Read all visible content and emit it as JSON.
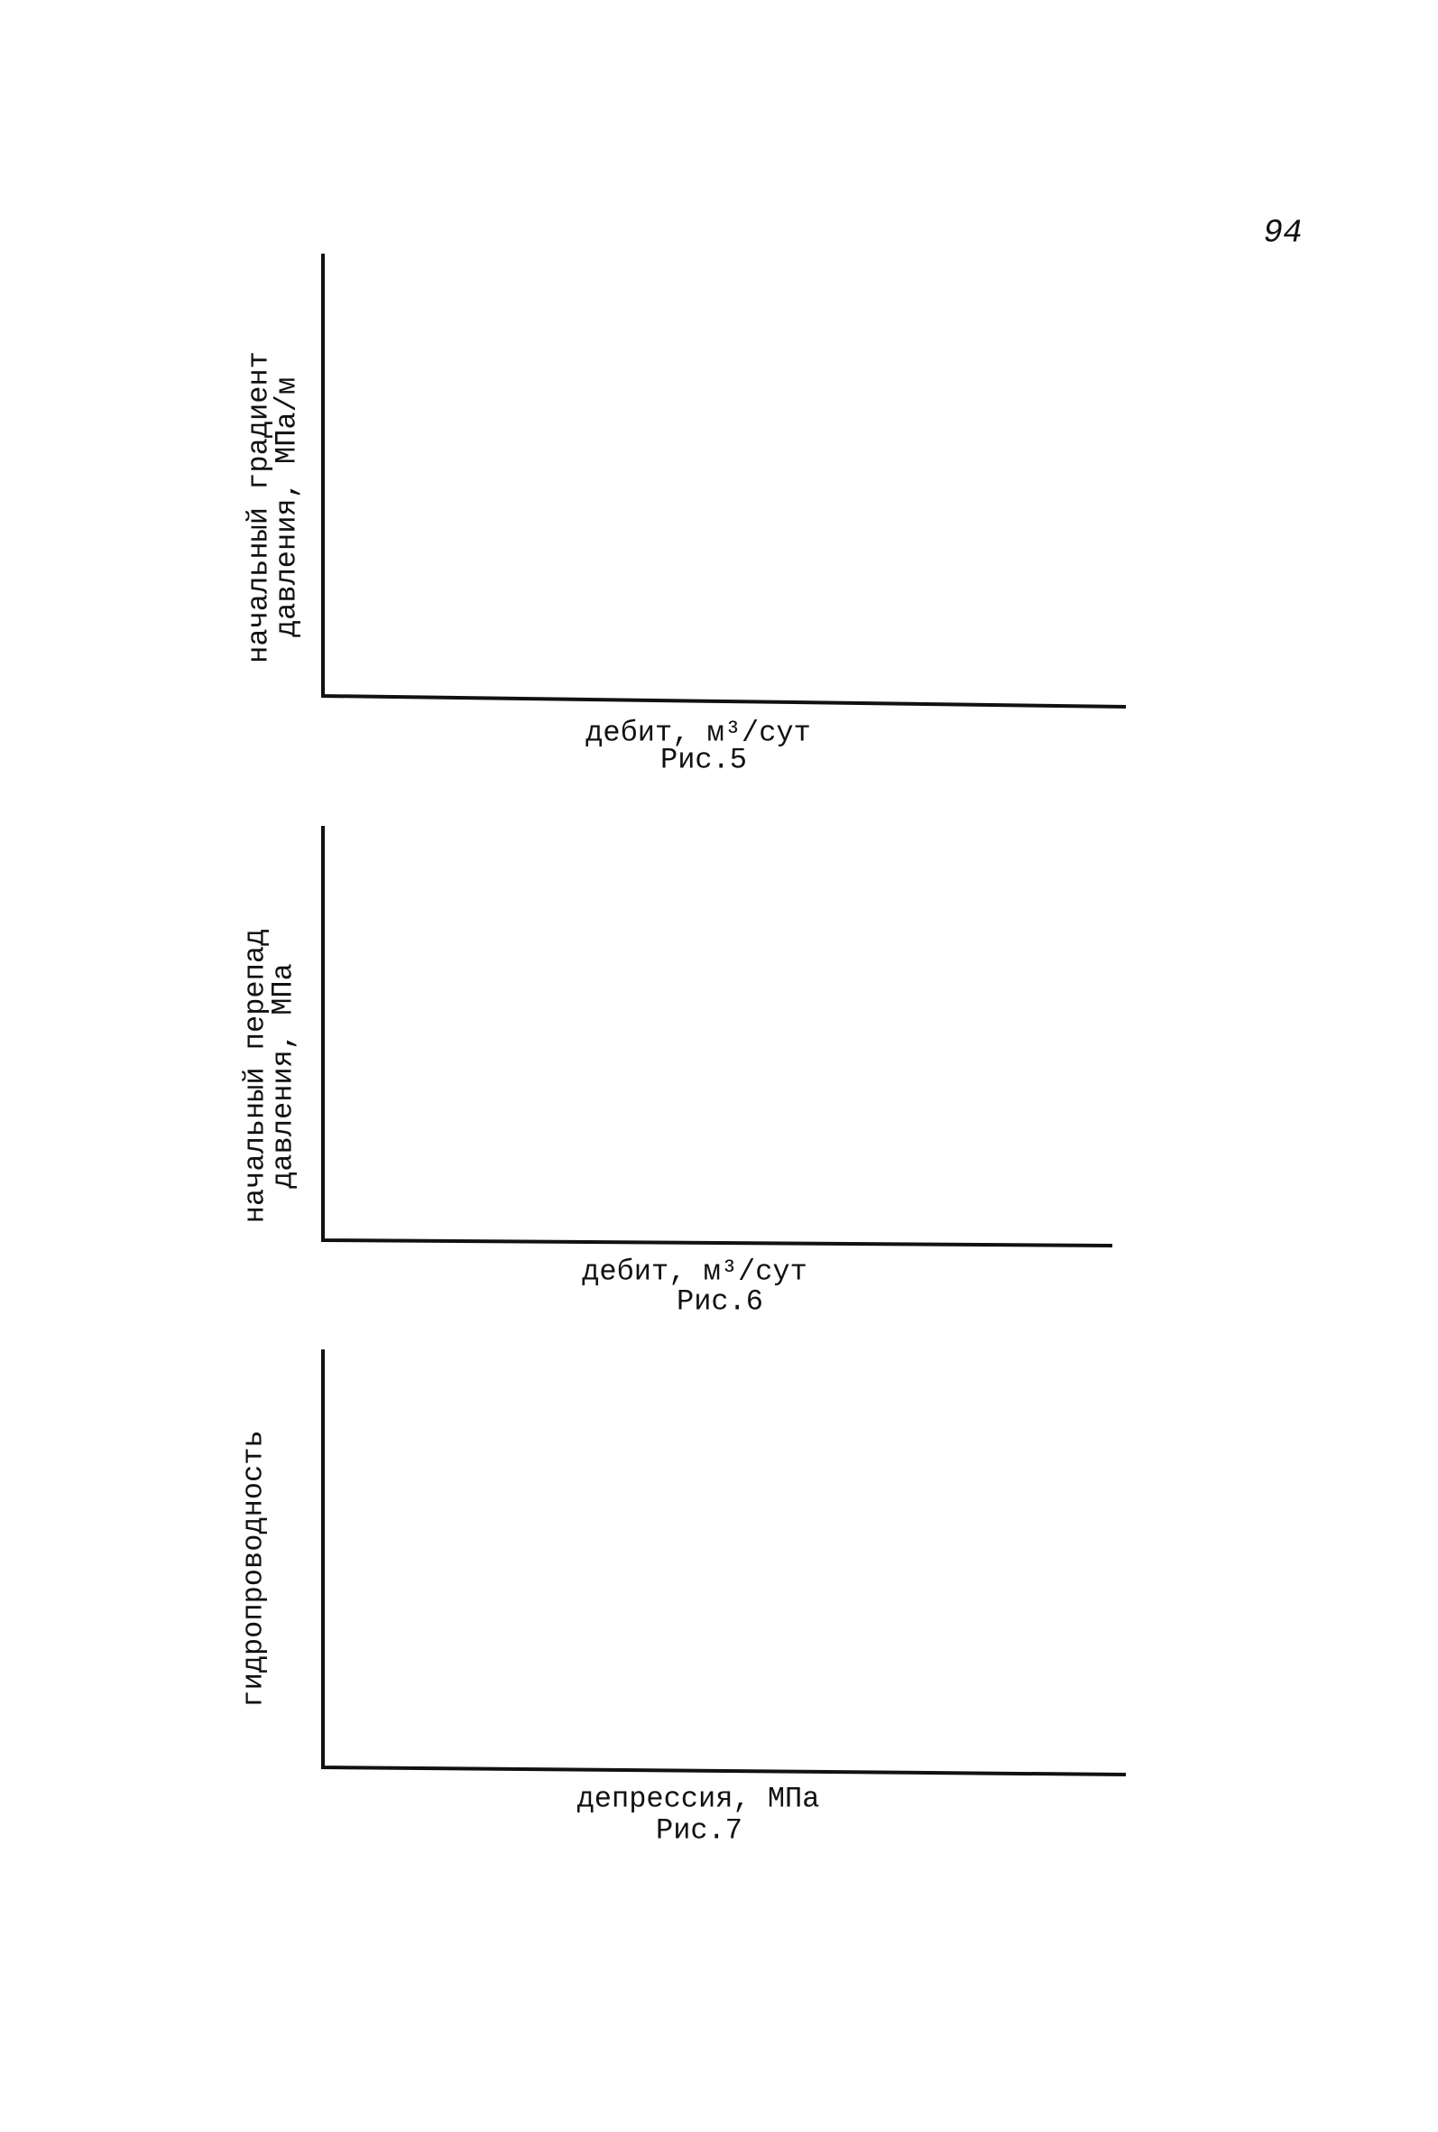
{
  "page_number": "94",
  "figures": [
    {
      "y_label": [
        "начальный градиент",
        "давления, МПа/м"
      ],
      "x_label": "дебит, м³/сут",
      "caption": "Рис.5"
    },
    {
      "y_label": [
        "начальный перепад",
        "давления, МПа"
      ],
      "x_label": "дебит, м³/сут",
      "caption": "Рис.6"
    },
    {
      "y_label": [
        "гидропроводность"
      ],
      "x_label": "депрессия, МПа",
      "caption": "Рис.7"
    }
  ]
}
